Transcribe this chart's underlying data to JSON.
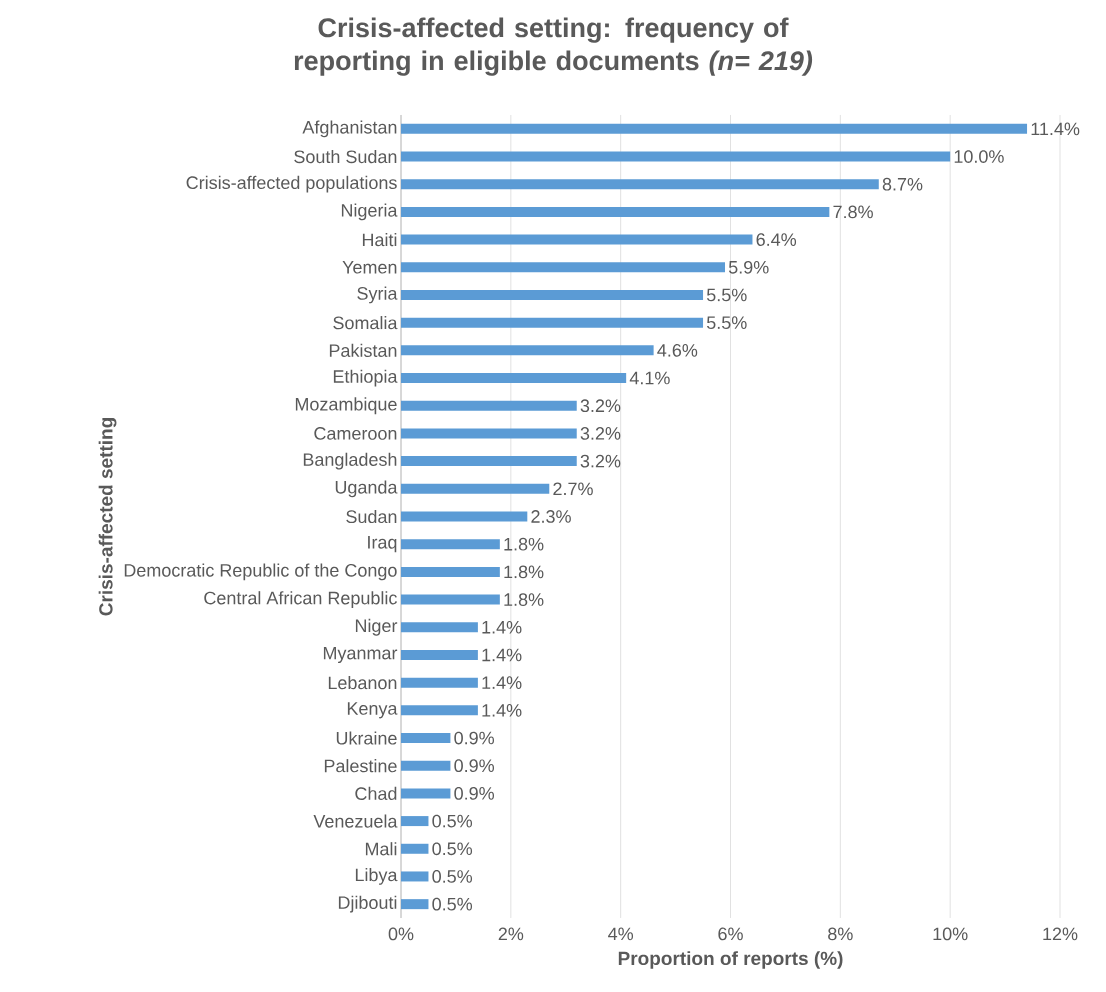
{
  "chart_data": {
    "type": "bar",
    "orientation": "horizontal",
    "title": "Crisis-affected setting: frequency of reporting in eligible documents *(n= 219)*",
    "xlabel": "Proportion of reports (%)",
    "ylabel": "Crisis-affected setting",
    "categories": [
      "Afghanistan",
      "South Sudan",
      "Crisis-affected populations",
      "Nigeria",
      "Haiti",
      "Yemen",
      "Syria",
      "Somalia",
      "Pakistan",
      "Ethiopia",
      "Mozambique",
      "Cameroon",
      "Bangladesh",
      "Uganda",
      "Sudan",
      "Iraq",
      "Democratic Republic of the Congo",
      "Central African Republic",
      "Niger",
      "Myanmar",
      "Lebanon",
      "Kenya",
      "Ukraine",
      "Palestine",
      "Chad",
      "Venezuela",
      "Mali",
      "Libya",
      "Djibouti"
    ],
    "values": [
      11.4,
      10.0,
      8.7,
      7.8,
      6.4,
      5.9,
      5.5,
      5.5,
      4.6,
      4.1,
      3.2,
      3.2,
      3.2,
      2.7,
      2.3,
      1.8,
      1.8,
      1.8,
      1.4,
      1.4,
      1.4,
      1.4,
      0.9,
      0.9,
      0.9,
      0.5,
      0.5,
      0.5,
      0.5
    ],
    "value_labels": [
      "11.4%",
      "10.0%",
      "8.7%",
      "7.8%",
      "6.4%",
      "5.9%",
      "5.5%",
      "5.5%",
      "4.6%",
      "4.1%",
      "3.2%",
      "3.2%",
      "3.2%",
      "2.7%",
      "2.3%",
      "1.8%",
      "1.8%",
      "1.8%",
      "1.4%",
      "1.4%",
      "1.4%",
      "1.4%",
      "0.9%",
      "0.9%",
      "0.9%",
      "0.5%",
      "0.5%",
      "0.5%",
      "0.5%"
    ],
    "color": "#5b9bd5",
    "xlim": [
      0,
      12
    ],
    "xticks": [
      {
        "value": 0,
        "label": "0%"
      },
      {
        "value": 2,
        "label": "2%"
      },
      {
        "value": 4,
        "label": "4%"
      },
      {
        "value": 6,
        "label": "6%"
      },
      {
        "value": 8,
        "label": "8%"
      },
      {
        "value": 10,
        "label": "10%"
      },
      {
        "value": 12,
        "label": "12%"
      }
    ],
    "grid": "x"
  }
}
